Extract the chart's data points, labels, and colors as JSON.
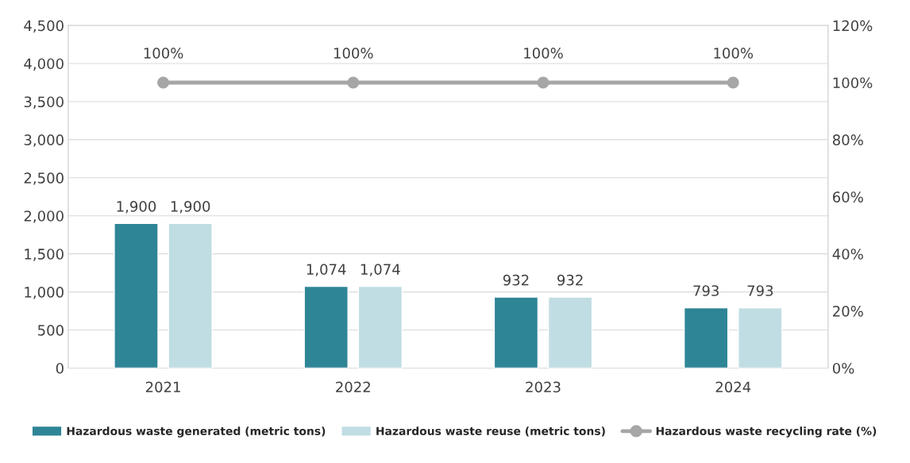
{
  "chart_data": {
    "type": "bar",
    "categories": [
      "2021",
      "2022",
      "2023",
      "2024"
    ],
    "series": [
      {
        "name": "Hazardous waste generated (metric tons)",
        "color": "#2e8596",
        "values": [
          1900,
          1074,
          932,
          793
        ],
        "value_labels": [
          "1,900",
          "1,074",
          "932",
          "793"
        ]
      },
      {
        "name": "Hazardous waste reuse (metric tons)",
        "color": "#c0dde3",
        "values": [
          1900,
          1074,
          932,
          793
        ],
        "value_labels": [
          "1,900",
          "1,074",
          "932",
          "793"
        ]
      },
      {
        "name": "Hazardous waste recycling rate (%)",
        "type": "line",
        "axis": "y2",
        "color": "#a6a6a6",
        "marker": "circle",
        "values": [
          100,
          100,
          100,
          100
        ],
        "value_labels": [
          "100%",
          "100%",
          "100%",
          "100%"
        ]
      }
    ],
    "ylim": [
      0,
      4500
    ],
    "yticks": [
      0,
      500,
      {
        "value": 1000,
        "label": "1,000"
      },
      {
        "value": 1500,
        "label": "1,500"
      },
      {
        "value": 2000,
        "label": "2,000"
      },
      {
        "value": 2500,
        "label": "2,500"
      },
      {
        "value": 3000,
        "label": "3,000"
      },
      {
        "value": 3500,
        "label": "3,500"
      },
      {
        "value": 4000,
        "label": "4,000"
      },
      {
        "value": 4500,
        "label": "4,500"
      }
    ],
    "y2lim": [
      0,
      120
    ],
    "y2ticks": [
      {
        "value": 0,
        "label": "0%"
      },
      {
        "value": 20,
        "label": "20%"
      },
      {
        "value": 40,
        "label": "40%"
      },
      {
        "value": 60,
        "label": "60%"
      },
      {
        "value": 80,
        "label": "80%"
      },
      {
        "value": 100,
        "label": "100%"
      },
      {
        "value": 120,
        "label": "120%"
      }
    ],
    "grid": "y",
    "legend": "bottom"
  }
}
